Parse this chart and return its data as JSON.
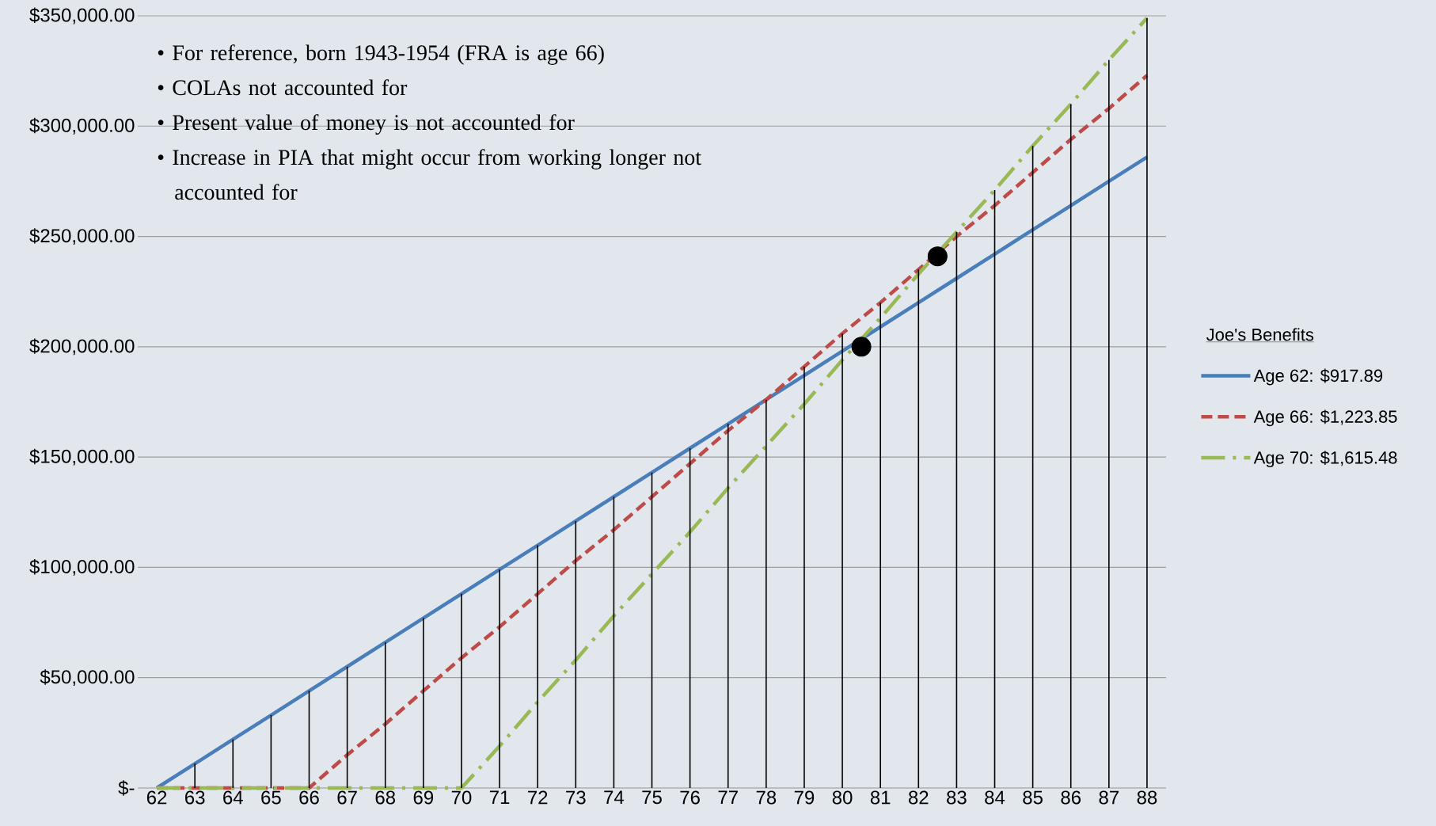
{
  "chart_data": {
    "type": "line",
    "x": [
      62,
      63,
      64,
      65,
      66,
      67,
      68,
      69,
      70,
      71,
      72,
      73,
      74,
      75,
      76,
      77,
      78,
      79,
      80,
      81,
      82,
      83,
      84,
      85,
      86,
      87,
      88
    ],
    "xlim": [
      61.5,
      88.5
    ],
    "xticks": [
      62,
      63,
      64,
      65,
      66,
      67,
      68,
      69,
      70,
      71,
      72,
      73,
      74,
      75,
      76,
      77,
      78,
      79,
      80,
      81,
      82,
      83,
      84,
      85,
      86,
      87,
      88
    ],
    "ylim": [
      0,
      350000
    ],
    "yticks": [
      {
        "value": 0,
        "label": "$-"
      },
      {
        "value": 50000,
        "label": "$50,000.00"
      },
      {
        "value": 100000,
        "label": "$100,000.00"
      },
      {
        "value": 150000,
        "label": "$150,000.00"
      },
      {
        "value": 200000,
        "label": "$200,000.00"
      },
      {
        "value": 250000,
        "label": "$250,000.00"
      },
      {
        "value": 300000,
        "label": "$300,000.00"
      },
      {
        "value": 350000,
        "label": "$350,000.00"
      }
    ],
    "grid": "y",
    "legend": "right",
    "legend_title": "Joe's Benefits",
    "annotations": [
      "• For reference, born 1943-1954 (FRA is age 66)",
      "• COLAs not accounted for",
      "• Present value of money is not accounted for",
      "• Increase in PIA that might occur from working longer not accounted for"
    ],
    "series": [
      {
        "name": "Age 62:  $917.89",
        "color": "#4a7ebb",
        "line_style": "solid",
        "values": [
          0,
          11000,
          22000,
          33000,
          44000,
          55000,
          66000,
          77000,
          88000,
          99000,
          110000,
          121000,
          132000,
          143000,
          154000,
          165000,
          176000,
          187000,
          198000,
          209000,
          220000,
          231000,
          242000,
          253000,
          264000,
          275000,
          286000
        ]
      },
      {
        "name": "Age 66:  $1,223.85",
        "color": "#be4b48",
        "line_style": "dashed",
        "values": [
          0,
          0,
          0,
          0,
          0,
          15000,
          29000,
          44000,
          59000,
          73000,
          88000,
          103000,
          117000,
          132000,
          147000,
          162000,
          176000,
          191000,
          206000,
          220000,
          235000,
          250000,
          264000,
          279000,
          294000,
          308000,
          323000
        ]
      },
      {
        "name": "Age 70:  $1,615.48",
        "color": "#98b954",
        "line_style": "dashdot",
        "values": [
          0,
          0,
          0,
          0,
          0,
          0,
          0,
          0,
          0,
          19000,
          39000,
          58000,
          78000,
          97000,
          116000,
          136000,
          155000,
          174000,
          194000,
          213000,
          233000,
          252000,
          271000,
          291000,
          310000,
          330000,
          349000
        ]
      },
      {
        "type": "bar",
        "color": "#000000",
        "values": [
          0,
          11000,
          22000,
          33000,
          44000,
          55000,
          66000,
          77000,
          88000,
          99000,
          110000,
          121000,
          132000,
          143000,
          154000,
          165000,
          176000,
          191000,
          206000,
          220000,
          235000,
          252000,
          271000,
          291000,
          310000,
          330000,
          349000
        ]
      },
      {
        "type": "scatter",
        "x": [
          80.5,
          82.5
        ],
        "values": [
          200000,
          241000
        ],
        "color": "#000000",
        "marker": "circle"
      }
    ]
  }
}
